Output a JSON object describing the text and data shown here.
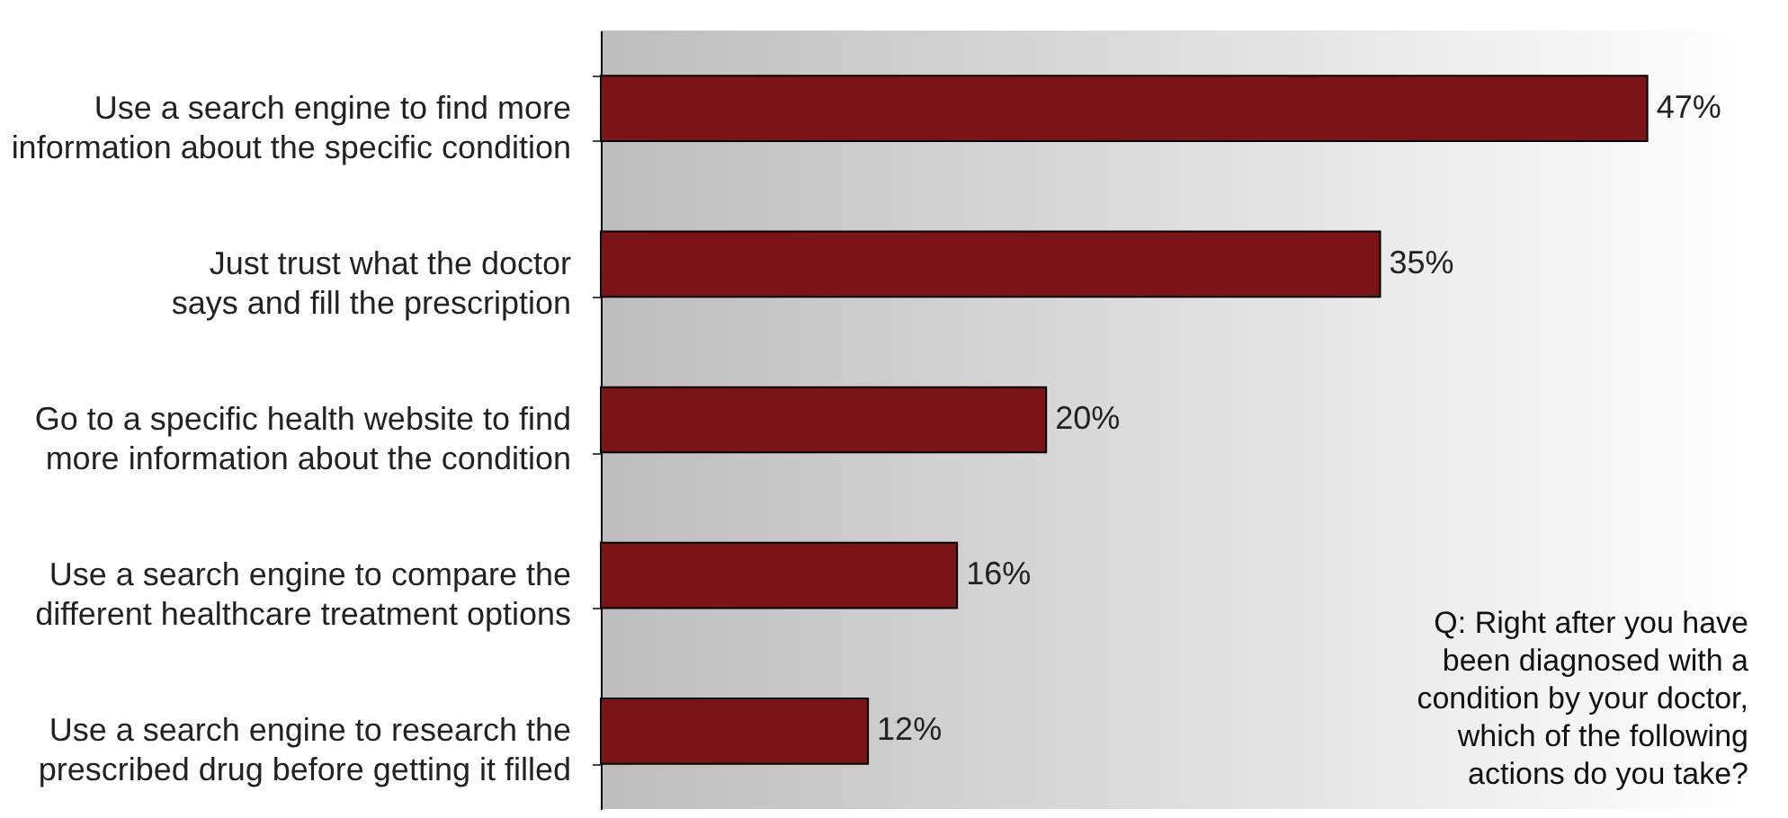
{
  "chart_data": {
    "type": "bar",
    "orientation": "horizontal",
    "categories": [
      "Use a search engine to find more information about the specific condition",
      "Just trust what the doctor says and fill the prescription",
      "Go to a specific health website to find more information about the condition",
      "Use a search engine to compare the different healthcare treatment options",
      "Use a search engine to research the prescribed drug before getting it filled"
    ],
    "values": [
      47,
      35,
      20,
      16,
      12
    ],
    "value_labels": [
      "47%",
      "35%",
      "20%",
      "16%",
      "12%"
    ],
    "color": "#7b1416",
    "annotations": [
      "Q: Right after you have been diagnosed with a condition by your doctor, which of the following actions do you take?"
    ]
  }
}
